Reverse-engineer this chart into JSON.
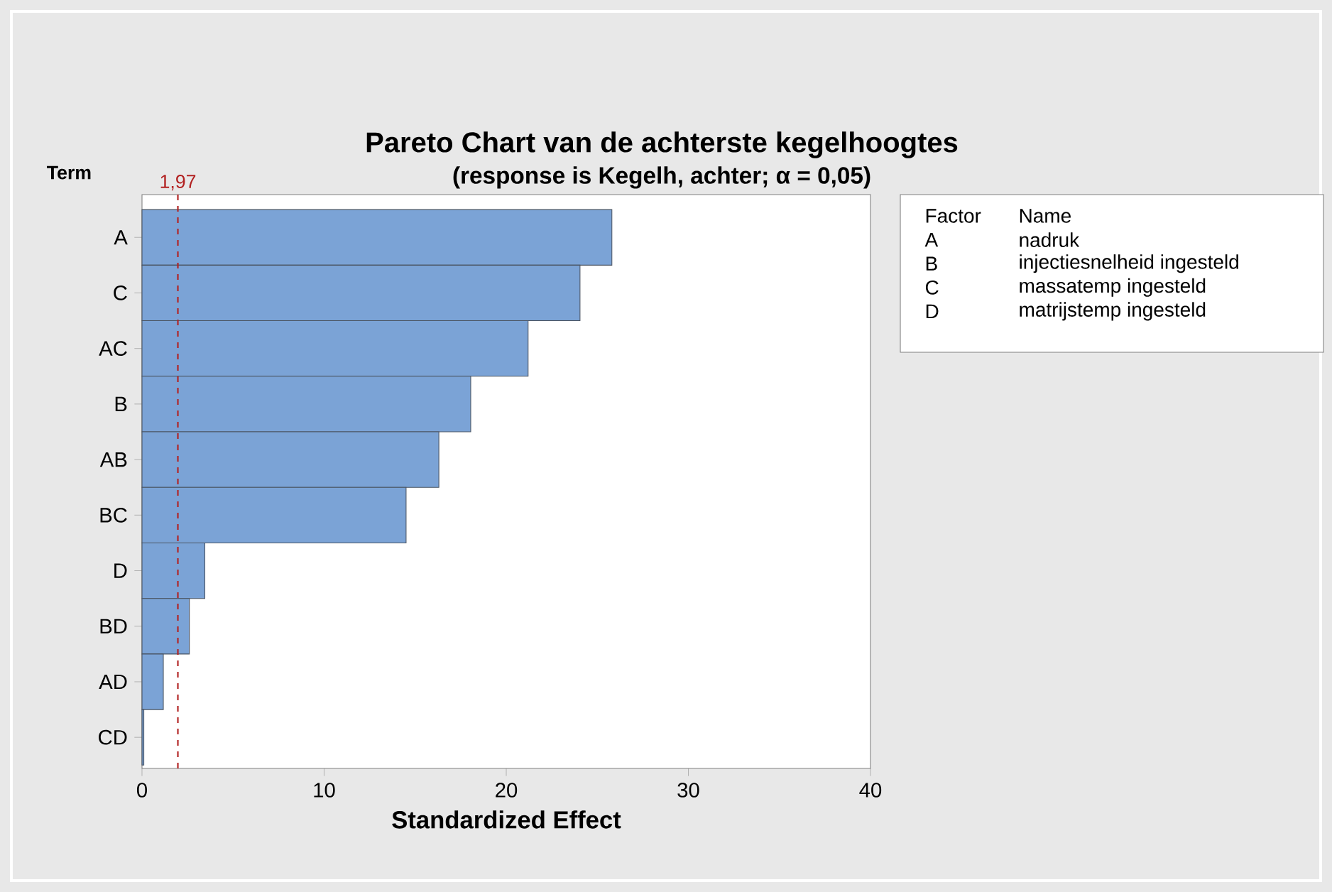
{
  "chart_data": {
    "type": "bar",
    "orientation": "horizontal",
    "title": "Pareto Chart van de achterste kegelhoogtes",
    "subtitle": "(response is Kegelh, achter; α = 0,05)",
    "ylabel": "Term",
    "xlabel": "Standardized Effect",
    "categories": [
      "A",
      "C",
      "AC",
      "B",
      "AB",
      "BC",
      "D",
      "BD",
      "AD",
      "CD"
    ],
    "values": [
      25.8,
      24.05,
      21.2,
      18.05,
      16.3,
      14.5,
      3.45,
      2.6,
      1.17,
      0.1
    ],
    "color": "#7ba3d6",
    "xlim": [
      0,
      40
    ],
    "xticks": [
      0,
      10,
      20,
      30,
      40
    ],
    "ref_lines": [
      {
        "axis": "x",
        "value": 1.97,
        "label": "1,97",
        "color": "#b22222",
        "line_style": "dashed"
      }
    ],
    "annotations": [
      "Factor",
      "Name",
      "A",
      "nadruk",
      "B",
      "injectiesnelheid ingesteld",
      "C",
      "massatemp ingesteld",
      "D",
      "matrijstemp ingesteld"
    ]
  }
}
